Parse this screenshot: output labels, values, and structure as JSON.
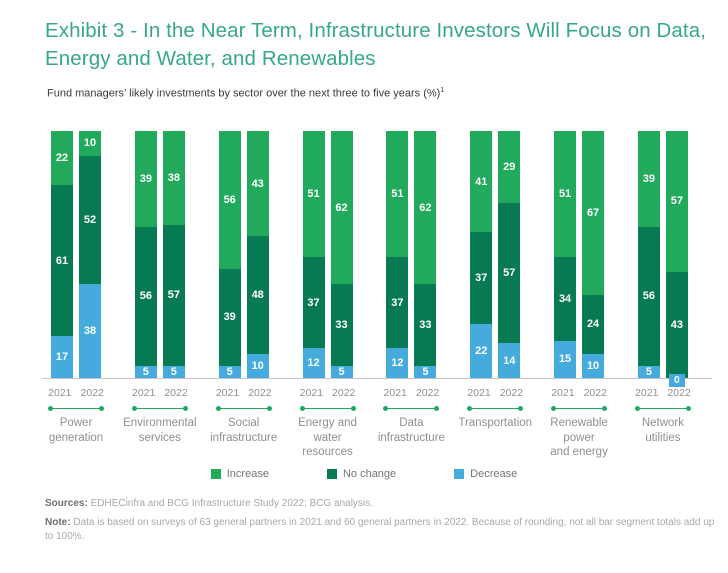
{
  "header": {
    "title_lines": [
      "Exhibit 3 - In the Near Term, Infrastructure Investors Will Focus on Data,",
      "Energy and Water, and Renewables"
    ],
    "subtitle": "Fund managers’ likely investments by sector over the next three to five years (%)",
    "subtitle_footnote_marker": "1"
  },
  "chart_data": {
    "type": "bar",
    "stacked": true,
    "unit": "%",
    "ylim": [
      0,
      100
    ],
    "grid": false,
    "legend_position": "bottom-center",
    "years": [
      "2021",
      "2022"
    ],
    "categories": [
      "Power generation",
      "Environmental services",
      "Social infrastructure",
      "Energy and water resources",
      "Data infrastructure",
      "Transportation",
      "Renewable power and energy",
      "Network utilities"
    ],
    "legend": [
      {
        "label": "Increase",
        "color": "#21a95c"
      },
      {
        "label": "No change",
        "color": "#087a53"
      },
      {
        "label": "Decrease",
        "color": "#45aadc"
      }
    ],
    "groups": [
      {
        "category": "Power generation",
        "category_lines": [
          "Power",
          "generation"
        ],
        "bars": [
          {
            "year": "2021",
            "increase": 22,
            "no_change": 61,
            "decrease": 17
          },
          {
            "year": "2022",
            "increase": 10,
            "no_change": 52,
            "decrease": 38
          }
        ]
      },
      {
        "category": "Environmental services",
        "category_lines": [
          "Environmental",
          "services"
        ],
        "bars": [
          {
            "year": "2021",
            "increase": 39,
            "no_change": 56,
            "decrease": 5
          },
          {
            "year": "2022",
            "increase": 38,
            "no_change": 57,
            "decrease": 5
          }
        ]
      },
      {
        "category": "Social infrastructure",
        "category_lines": [
          "Social",
          "infrastructure"
        ],
        "bars": [
          {
            "year": "2021",
            "increase": 56,
            "no_change": 39,
            "decrease": 5
          },
          {
            "year": "2022",
            "increase": 43,
            "no_change": 48,
            "decrease": 10
          }
        ]
      },
      {
        "category": "Energy and water resources",
        "category_lines": [
          "Energy and",
          "water",
          "resources"
        ],
        "bars": [
          {
            "year": "2021",
            "increase": 51,
            "no_change": 37,
            "decrease": 12
          },
          {
            "year": "2022",
            "increase": 62,
            "no_change": 33,
            "decrease": 5
          }
        ]
      },
      {
        "category": "Data infrastructure",
        "category_lines": [
          "Data",
          "infrastructure"
        ],
        "bars": [
          {
            "year": "2021",
            "increase": 51,
            "no_change": 37,
            "decrease": 12
          },
          {
            "year": "2022",
            "increase": 62,
            "no_change": 33,
            "decrease": 5
          }
        ]
      },
      {
        "category": "Transportation",
        "category_lines": [
          "Transportation"
        ],
        "bars": [
          {
            "year": "2021",
            "increase": 41,
            "no_change": 37,
            "decrease": 22
          },
          {
            "year": "2022",
            "increase": 29,
            "no_change": 57,
            "decrease": 14
          }
        ]
      },
      {
        "category": "Renewable power and energy",
        "category_lines": [
          "Renewable",
          "power",
          "and energy"
        ],
        "bars": [
          {
            "year": "2021",
            "increase": 51,
            "no_change": 34,
            "decrease": 15
          },
          {
            "year": "2022",
            "increase": 67,
            "no_change": 24,
            "decrease": 10
          }
        ]
      },
      {
        "category": "Network utilities",
        "category_lines": [
          "Network",
          "utilities"
        ],
        "bars": [
          {
            "year": "2021",
            "increase": 39,
            "no_change": 56,
            "decrease": 5
          },
          {
            "year": "2022",
            "increase": 57,
            "no_change": 43,
            "decrease": 0
          }
        ]
      }
    ]
  },
  "footer": {
    "sources_label": "Sources:",
    "sources_text": " EDHECinfra and BCG Infrastructure Study 2022; BCG analysis.",
    "note_label": "Note:",
    "note_text": " Data is based on surveys of 63 general partners in 2021 and 60 general partners in 2022. Because of rounding, not all bar segment totals add up to 100%."
  },
  "colors": {
    "title": "#36a78c",
    "increase": "#21a95c",
    "no_change": "#087a53",
    "decrease": "#45aadc",
    "axis_line": "#c4c4c4",
    "muted_text": "#8f8f8f"
  }
}
